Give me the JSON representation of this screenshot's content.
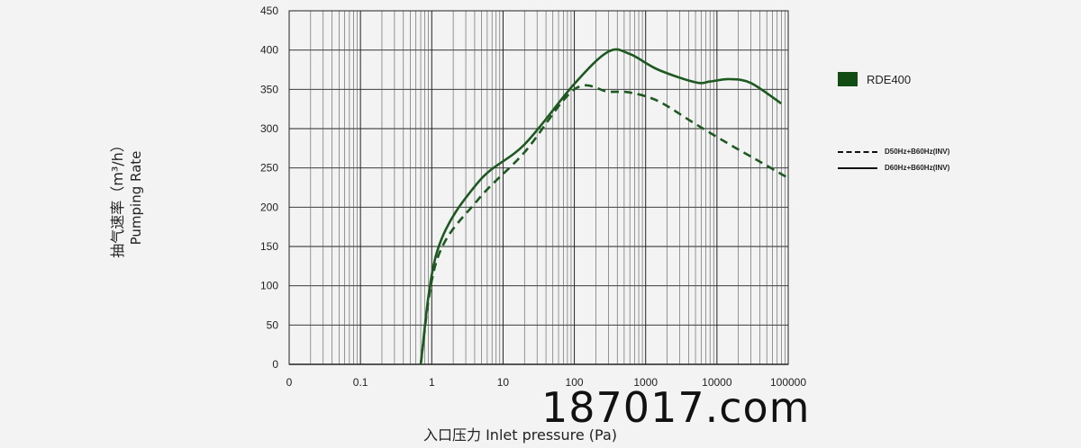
{
  "chart_data": {
    "type": "line",
    "x_scale": "log",
    "xlabel": "入口压力 Inlet pressure (Pa)",
    "ylabel_cn": "抽气速率（m³/h）",
    "ylabel_en": "Pumping Rate",
    "x_ticks": [
      "0",
      "0.1",
      "1",
      "10",
      "100",
      "1000",
      "10000",
      "100000"
    ],
    "y_ticks": [
      "0",
      "50",
      "100",
      "150",
      "200",
      "250",
      "300",
      "350",
      "400",
      "450"
    ],
    "ylim": [
      0,
      450
    ],
    "grid": true,
    "legend_swatch_label": "RDE400",
    "legend_swatch_color": "#0f4d14",
    "series": [
      {
        "name": "D60Hz+B60Hz(INV)",
        "style": "solid",
        "color": "#1c5a20",
        "x": [
          0.7,
          1.2,
          4.5,
          20,
          100,
          300,
          600,
          1500,
          5000,
          8000,
          15000,
          30000,
          80000
        ],
        "y": [
          0,
          145,
          232,
          280,
          357,
          398,
          395,
          375,
          359,
          360,
          363,
          358,
          332
        ]
      },
      {
        "name": "D50Hz+B60Hz(INV)",
        "style": "dashed",
        "color": "#1c5a20",
        "x": [
          0.7,
          1.2,
          4.5,
          20,
          100,
          300,
          600,
          1500,
          5000,
          15000,
          40000,
          100000
        ],
        "y": [
          0,
          135,
          210,
          270,
          350,
          347,
          346,
          335,
          306,
          280,
          258,
          237
        ]
      }
    ]
  },
  "watermark": "187017.com"
}
